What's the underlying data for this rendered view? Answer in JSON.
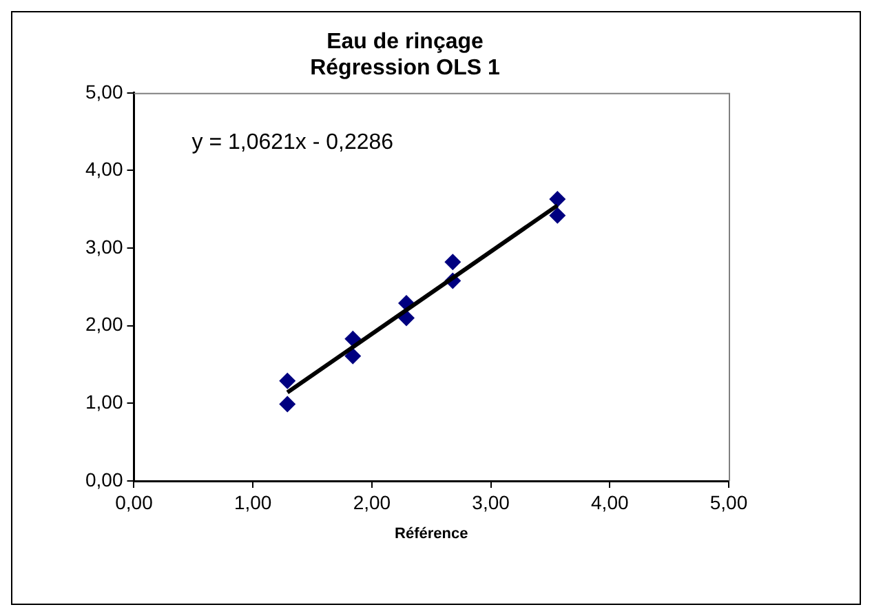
{
  "chart_data": {
    "type": "scatter",
    "title": "Eau de rinçage\nRégression OLS 1",
    "xlabel": "Référence",
    "annotations": [
      "y = 1,0621x - 0,2286"
    ],
    "x": [
      1.29,
      1.29,
      1.84,
      1.84,
      2.29,
      2.29,
      2.68,
      2.68,
      3.56,
      3.56
    ],
    "series": [
      {
        "type": "scatter",
        "color": "#000080",
        "marker": "diamond",
        "values": [
          1.29,
          0.99,
          1.83,
          1.61,
          2.29,
          2.1,
          2.82,
          2.58,
          3.63,
          3.42
        ]
      },
      {
        "type": "line",
        "color": "#000000",
        "marker": "none",
        "x": [
          1.29,
          3.56
        ],
        "values": [
          1.14,
          3.55
        ]
      }
    ],
    "xlim": [
      0,
      5
    ],
    "ylim": [
      0,
      5
    ],
    "xticks": [
      {
        "value": 0,
        "label": "0,00"
      },
      {
        "value": 1,
        "label": "1,00"
      },
      {
        "value": 2,
        "label": "2,00"
      },
      {
        "value": 3,
        "label": "3,00"
      },
      {
        "value": 4,
        "label": "4,00"
      },
      {
        "value": 5,
        "label": "5,00"
      }
    ],
    "yticks": [
      {
        "value": 0,
        "label": "0,00"
      },
      {
        "value": 1,
        "label": "1,00"
      },
      {
        "value": 2,
        "label": "2,00"
      },
      {
        "value": 3,
        "label": "3,00"
      },
      {
        "value": 4,
        "label": "4,00"
      },
      {
        "value": 5,
        "label": "5,00"
      }
    ],
    "grid": false,
    "legend": false
  }
}
